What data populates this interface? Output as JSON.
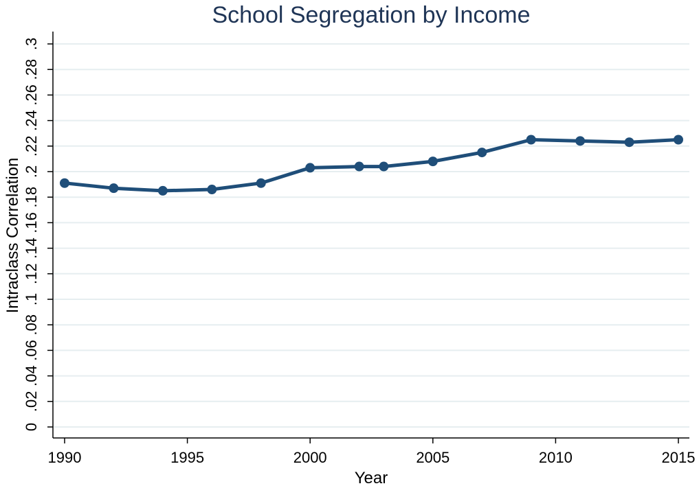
{
  "chart_data": {
    "type": "line",
    "title": "School Segregation by Income",
    "xlabel": "Year",
    "ylabel": "Intraclass Correlation",
    "xlim": [
      1990,
      2015
    ],
    "ylim": [
      0,
      0.3
    ],
    "x_ticks": [
      1990,
      1995,
      2000,
      2005,
      2010,
      2015
    ],
    "x_tick_labels": [
      "1990",
      "1995",
      "2000",
      "2005",
      "2010",
      "2015"
    ],
    "y_ticks": [
      0,
      0.02,
      0.04,
      0.06,
      0.08,
      0.1,
      0.12,
      0.14,
      0.16,
      0.18,
      0.2,
      0.22,
      0.24,
      0.26,
      0.28,
      0.3
    ],
    "y_tick_labels": [
      "0",
      ".02",
      ".04",
      ".06",
      ".08",
      ".1",
      ".12",
      ".14",
      ".16",
      ".18",
      ".2",
      ".22",
      ".24",
      ".26",
      ".28",
      ".3"
    ],
    "grid": true,
    "series": [
      {
        "color": "#1f4e79",
        "x": [
          1990,
          1992,
          1994,
          1996,
          1998,
          2000,
          2002,
          2003,
          2005,
          2007,
          2009,
          2011,
          2013,
          2015
        ],
        "y": [
          0.191,
          0.187,
          0.185,
          0.186,
          0.191,
          0.203,
          0.204,
          0.204,
          0.208,
          0.215,
          0.225,
          0.224,
          0.223,
          0.225
        ]
      }
    ]
  }
}
